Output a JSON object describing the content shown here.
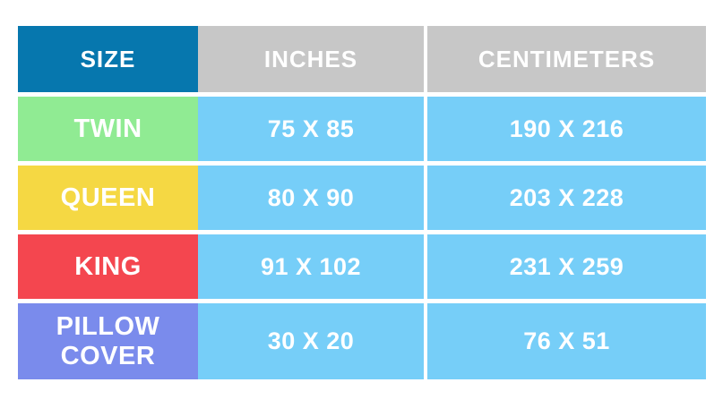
{
  "table": {
    "headers": [
      "SIZE",
      "INCHES",
      "CENTIMETERS"
    ],
    "rows": [
      {
        "size": "TWIN",
        "inches": "75 X 85",
        "centimeters": "190 X 216",
        "color": "#90eb93"
      },
      {
        "size": "QUEEN",
        "inches": "80 X 90",
        "centimeters": "203 X 228",
        "color": "#f5d843"
      },
      {
        "size": "KING",
        "inches": "91 X 102",
        "centimeters": "231 X 259",
        "color": "#f4464f"
      },
      {
        "size": "PILLOW COVER",
        "inches": "30 X 20",
        "centimeters": "76 X 51",
        "color": "#7a8bec"
      }
    ],
    "colors": {
      "header_size_bg": "#0677ae",
      "header_metric_bg": "#c7c7c7",
      "value_cell_bg": "#76cef8",
      "text": "#ffffff",
      "page_background": "#ffffff"
    }
  },
  "chart_data": {
    "type": "table",
    "columns": [
      "SIZE",
      "INCHES",
      "CENTIMETERS"
    ],
    "rows": [
      [
        "TWIN",
        "75 X 85",
        "190 X 216"
      ],
      [
        "QUEEN",
        "80 X 90",
        "203 X 228"
      ],
      [
        "KING",
        "91 X 102",
        "231 X 259"
      ],
      [
        "PILLOW COVER",
        "30 X 20",
        "76 X 51"
      ]
    ]
  }
}
